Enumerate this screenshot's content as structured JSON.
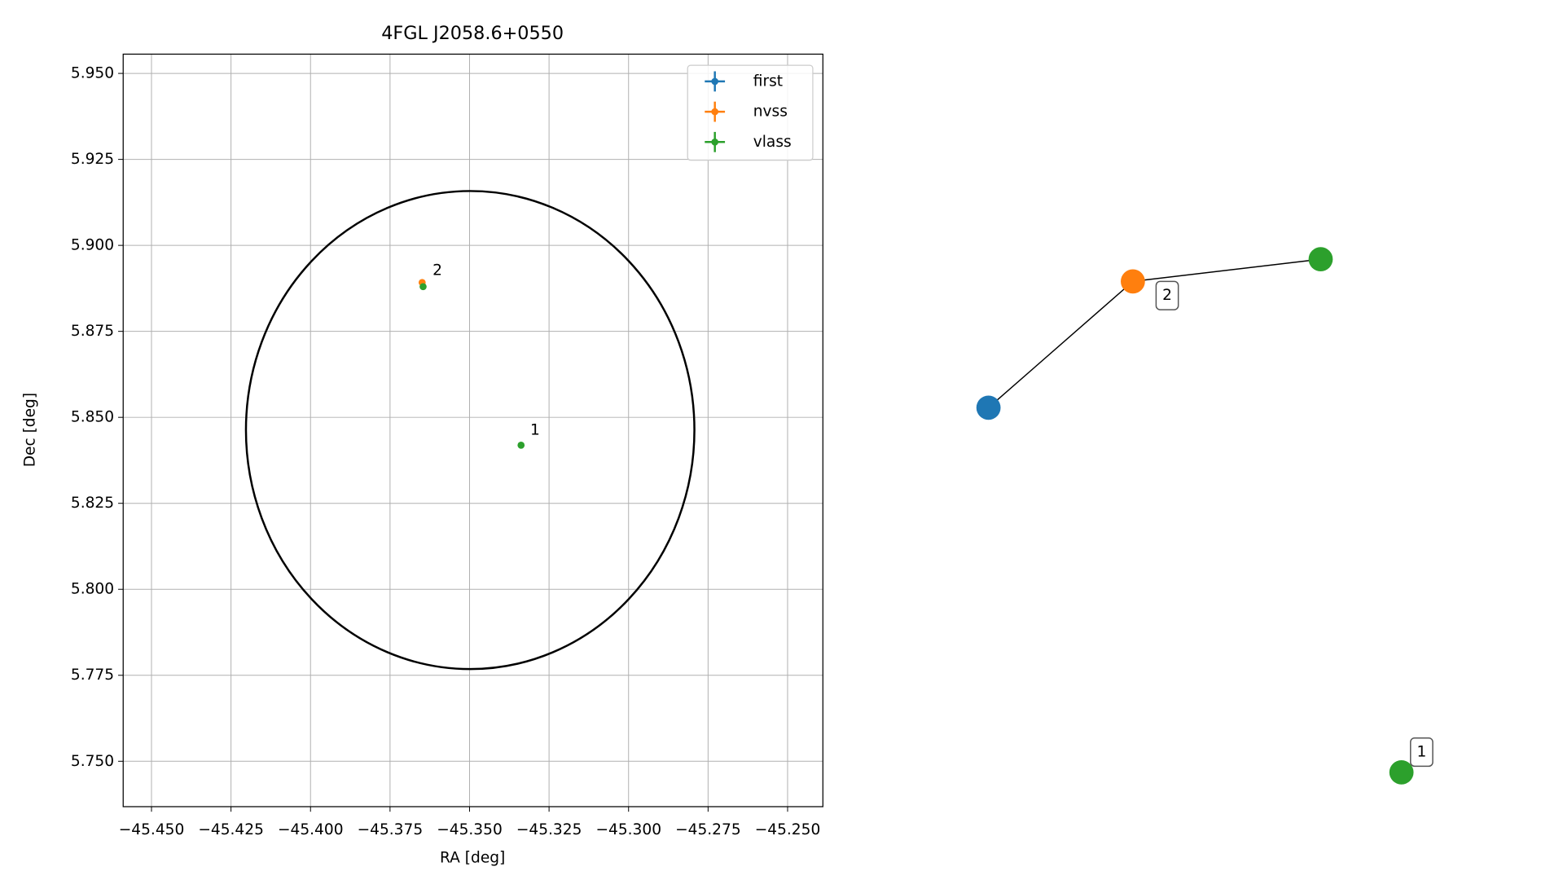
{
  "chart_data": [
    {
      "type": "scatter",
      "title": "4FGL J2058.6+0550",
      "xlabel": "RA [deg]",
      "ylabel": "Dec [deg]",
      "xlim": [
        -45.4589,
        -45.2389
      ],
      "ylim": [
        5.7368,
        5.9556
      ],
      "xticks": [
        {
          "value": -45.45,
          "label": "−45.450"
        },
        {
          "value": -45.425,
          "label": "−45.425"
        },
        {
          "value": -45.4,
          "label": "−45.400"
        },
        {
          "value": -45.375,
          "label": "−45.375"
        },
        {
          "value": -45.35,
          "label": "−45.350"
        },
        {
          "value": -45.325,
          "label": "−45.325"
        },
        {
          "value": -45.3,
          "label": "−45.300"
        },
        {
          "value": -45.275,
          "label": "−45.275"
        },
        {
          "value": -45.25,
          "label": "−45.250"
        }
      ],
      "yticks": [
        {
          "value": 5.95,
          "label": "5.950"
        },
        5.925,
        {
          "value": 5.9,
          "label": "5.900"
        },
        5.875,
        {
          "value": 5.85,
          "label": "5.850"
        },
        5.825,
        {
          "value": 5.8,
          "label": "5.800"
        },
        5.775,
        {
          "value": 5.75,
          "label": "5.750"
        }
      ],
      "grid": true,
      "legend": "upper right",
      "series": [
        {
          "name": "first",
          "color": "#1f77b4",
          "x": [],
          "y": []
        },
        {
          "name": "nvss",
          "color": "#ff7f0e",
          "x": [
            -45.3649
          ],
          "y": [
            5.8892
          ]
        },
        {
          "name": "vlass",
          "color": "#2ca02c",
          "x": [
            -45.3646,
            -45.3338
          ],
          "y": [
            5.888,
            5.8419
          ]
        }
      ],
      "ellipse": {
        "center": [
          -45.3498,
          5.8463
        ],
        "width": 0.141,
        "height": 0.139,
        "color": "#000000"
      },
      "annotations": [
        {
          "text": "2",
          "x": -45.3601,
          "y": 5.8927
        },
        {
          "text": "1",
          "x": -45.3294,
          "y": 5.8463
        }
      ]
    },
    {
      "type": "network",
      "nodes": [
        {
          "color": "#1f77b4"
        },
        {
          "color": "#ff7f0e",
          "label": "2"
        },
        {
          "color": "#2ca02c"
        },
        {
          "color": "#2ca02c",
          "label": "1"
        }
      ],
      "edges": [
        [
          0,
          1
        ],
        [
          1,
          2
        ]
      ]
    }
  ]
}
